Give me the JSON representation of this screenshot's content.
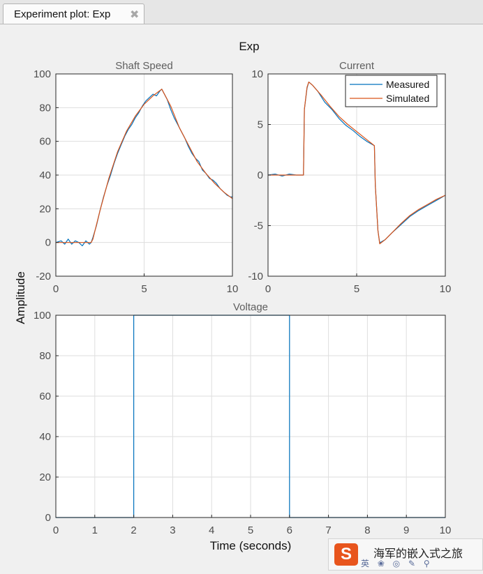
{
  "window": {
    "tab_title": "Experiment plot: Exp",
    "close_glyph": "✖",
    "close_icon": "close-icon"
  },
  "figure": {
    "suptitle": "Exp",
    "ylabel": "Amplitude",
    "xlabel": "Time (seconds)"
  },
  "colors": {
    "measured": "#0072bd",
    "simulated": "#d95319",
    "grid": "#dedede",
    "axis": "#262626",
    "tick_text": "#4d4d4d",
    "background": "#f0f0f0"
  },
  "chart_data": [
    {
      "type": "line",
      "title": "Shaft Speed",
      "xlim": [
        0,
        10
      ],
      "ylim": [
        -20,
        100
      ],
      "xticks": [
        0,
        5,
        10
      ],
      "yticks": [
        -20,
        0,
        20,
        40,
        60,
        80,
        100
      ],
      "grid": true,
      "series": [
        {
          "name": "Measured",
          "x": [
            0,
            0.3,
            0.5,
            0.7,
            0.9,
            1.1,
            1.3,
            1.5,
            1.7,
            1.9,
            2.0,
            2.1,
            2.3,
            2.5,
            2.7,
            2.9,
            3.1,
            3.3,
            3.5,
            3.7,
            3.9,
            4.1,
            4.3,
            4.5,
            4.7,
            4.9,
            5.1,
            5.3,
            5.5,
            5.7,
            5.9,
            6.0,
            6.1,
            6.3,
            6.5,
            6.7,
            6.9,
            7.1,
            7.3,
            7.5,
            7.7,
            7.9,
            8.1,
            8.3,
            8.5,
            8.7,
            8.9,
            9.1,
            9.3,
            9.5,
            9.7,
            9.9,
            10.0
          ],
          "y": [
            0,
            1,
            -1,
            2,
            -1,
            1,
            0,
            -2,
            1,
            -1,
            0,
            3,
            10,
            19,
            27,
            34,
            40,
            47,
            53,
            58,
            63,
            67,
            70,
            74,
            77,
            81,
            84,
            86,
            88,
            87,
            90,
            91,
            89,
            85,
            79,
            74,
            70,
            66,
            62,
            57,
            53,
            50,
            48,
            43,
            41,
            38,
            37,
            35,
            32,
            30,
            28,
            27,
            27
          ]
        },
        {
          "name": "Simulated",
          "x": [
            0,
            2.0,
            2.1,
            2.5,
            3.0,
            3.5,
            4.0,
            4.5,
            5.0,
            5.5,
            6.0,
            6.5,
            7.0,
            7.5,
            8.0,
            8.5,
            9.0,
            9.5,
            10.0
          ],
          "y": [
            0,
            0,
            2,
            19,
            38,
            54,
            66,
            75,
            82,
            87,
            91,
            81,
            68,
            58,
            48,
            41,
            35,
            30,
            26
          ]
        }
      ]
    },
    {
      "type": "line",
      "title": "Current",
      "xlim": [
        0,
        10
      ],
      "ylim": [
        -10,
        10
      ],
      "xticks": [
        0,
        5,
        10
      ],
      "yticks": [
        -10,
        -5,
        0,
        5,
        10
      ],
      "grid": true,
      "legend": {
        "entries": [
          "Measured",
          "Simulated"
        ],
        "placement": "top-right"
      },
      "series": [
        {
          "name": "Measured",
          "x": [
            0,
            0.4,
            0.8,
            1.2,
            1.6,
            2.0,
            2.05,
            2.2,
            2.3,
            2.5,
            2.8,
            3.2,
            3.6,
            4.0,
            4.4,
            4.8,
            5.2,
            5.6,
            6.0,
            6.05,
            6.2,
            6.3,
            6.6,
            7.0,
            7.5,
            8.0,
            8.5,
            9.0,
            9.5,
            10.0
          ],
          "y": [
            0,
            0.1,
            -0.1,
            0.1,
            0,
            0,
            6.5,
            8.6,
            9.2,
            8.9,
            8.3,
            7.2,
            6.5,
            5.6,
            4.9,
            4.4,
            3.8,
            3.3,
            2.9,
            -1.0,
            -5.5,
            -6.7,
            -6.4,
            -5.7,
            -4.9,
            -4.1,
            -3.5,
            -3.0,
            -2.5,
            -2.0
          ]
        },
        {
          "name": "Simulated",
          "x": [
            0,
            2.0,
            2.05,
            2.2,
            2.3,
            2.5,
            3.0,
            3.5,
            4.0,
            4.5,
            5.0,
            5.5,
            6.0,
            6.05,
            6.2,
            6.3,
            6.6,
            7.0,
            7.5,
            8.0,
            8.5,
            9.0,
            9.5,
            10.0
          ],
          "y": [
            0,
            0,
            6.5,
            8.7,
            9.2,
            8.9,
            7.9,
            6.8,
            5.8,
            5.0,
            4.3,
            3.6,
            2.9,
            -1.0,
            -5.5,
            -6.8,
            -6.4,
            -5.7,
            -4.8,
            -4.0,
            -3.4,
            -2.9,
            -2.4,
            -2.0
          ]
        }
      ]
    },
    {
      "type": "line",
      "title": "Voltage",
      "xlim": [
        0,
        10
      ],
      "ylim": [
        0,
        100
      ],
      "xticks": [
        0,
        1,
        2,
        3,
        4,
        5,
        6,
        7,
        8,
        9,
        10
      ],
      "yticks": [
        0,
        20,
        40,
        60,
        80,
        100
      ],
      "grid": true,
      "series": [
        {
          "name": "Measured",
          "x": [
            0,
            2,
            2,
            6,
            6,
            10
          ],
          "y": [
            0,
            0,
            100,
            100,
            0,
            0
          ]
        }
      ]
    }
  ],
  "watermark": {
    "logo_char": "S",
    "text": "海军的嵌入式之旅",
    "toolbar_glyphs": "英 ❀ ◎ ✎ ⚲"
  }
}
